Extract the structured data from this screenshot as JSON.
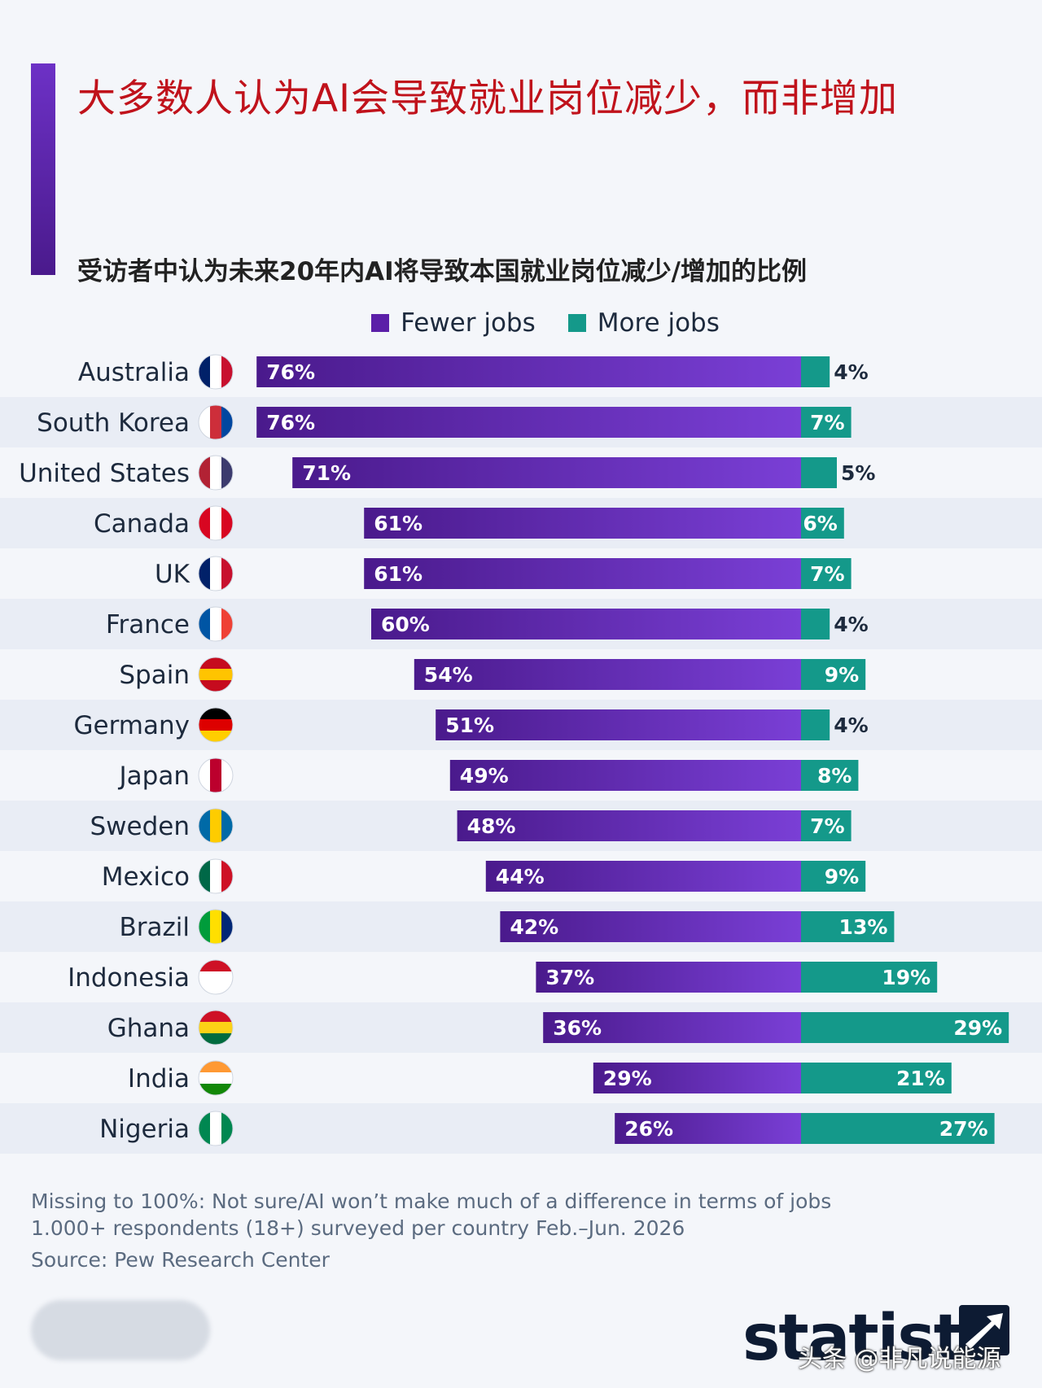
{
  "title": "大多数人认为AI会导致就业岗位减少，而非增加",
  "subtitle": "受访者中认为未来20年内AI将导致本国就业岗位减少/增加的比例",
  "legend": [
    {
      "label": "Fewer jobs",
      "color": "#5b1fa8"
    },
    {
      "label": "More jobs",
      "color": "#14998a"
    }
  ],
  "chart_data": {
    "type": "bar",
    "orientation": "horizontal-diverging",
    "categories": [
      "Australia",
      "South Korea",
      "United States",
      "Canada",
      "UK",
      "France",
      "Spain",
      "Germany",
      "Japan",
      "Sweden",
      "Mexico",
      "Brazil",
      "Indonesia",
      "Ghana",
      "India",
      "Nigeria"
    ],
    "series": [
      {
        "name": "Fewer jobs",
        "values": [
          76,
          76,
          71,
          61,
          61,
          60,
          54,
          51,
          49,
          48,
          44,
          42,
          37,
          36,
          29,
          26
        ],
        "labels": [
          "76%",
          "76%",
          "71%",
          "61%",
          "61%",
          "60%",
          "54%",
          "51%",
          "49%",
          "48%",
          "44%",
          "42%",
          "37%",
          "36%",
          "29%",
          "26%"
        ],
        "color": "#5b1fa8"
      },
      {
        "name": "More jobs",
        "values": [
          4,
          7,
          5,
          6,
          7,
          4,
          9,
          4,
          8,
          7,
          9,
          13,
          19,
          29,
          21,
          27
        ],
        "labels": [
          "4%",
          "7%",
          "5%",
          "6%",
          "7%",
          "4%",
          "9%",
          "4%",
          "8%",
          "7%",
          "9%",
          "13%",
          "19%",
          "29%",
          "21%",
          "27%"
        ],
        "color": "#14998a"
      }
    ],
    "unit": "%",
    "legend_position": "top-center",
    "grid": false
  },
  "footnotes": [
    "Missing to 100%: Not sure/AI won’t make much of a difference in terms of jobs",
    "1.000+ respondents (18+) surveyed per country Feb.–Jun. 2026"
  ],
  "source": "Source: Pew Research Center",
  "brand": "statista",
  "watermark": "头条 @非凡说能源",
  "colors": {
    "fewer": "#5b1fa8",
    "fewer_light": "#7a3fd6",
    "more": "#14998a",
    "title": "#c0121b",
    "band": "#e9edf5"
  }
}
